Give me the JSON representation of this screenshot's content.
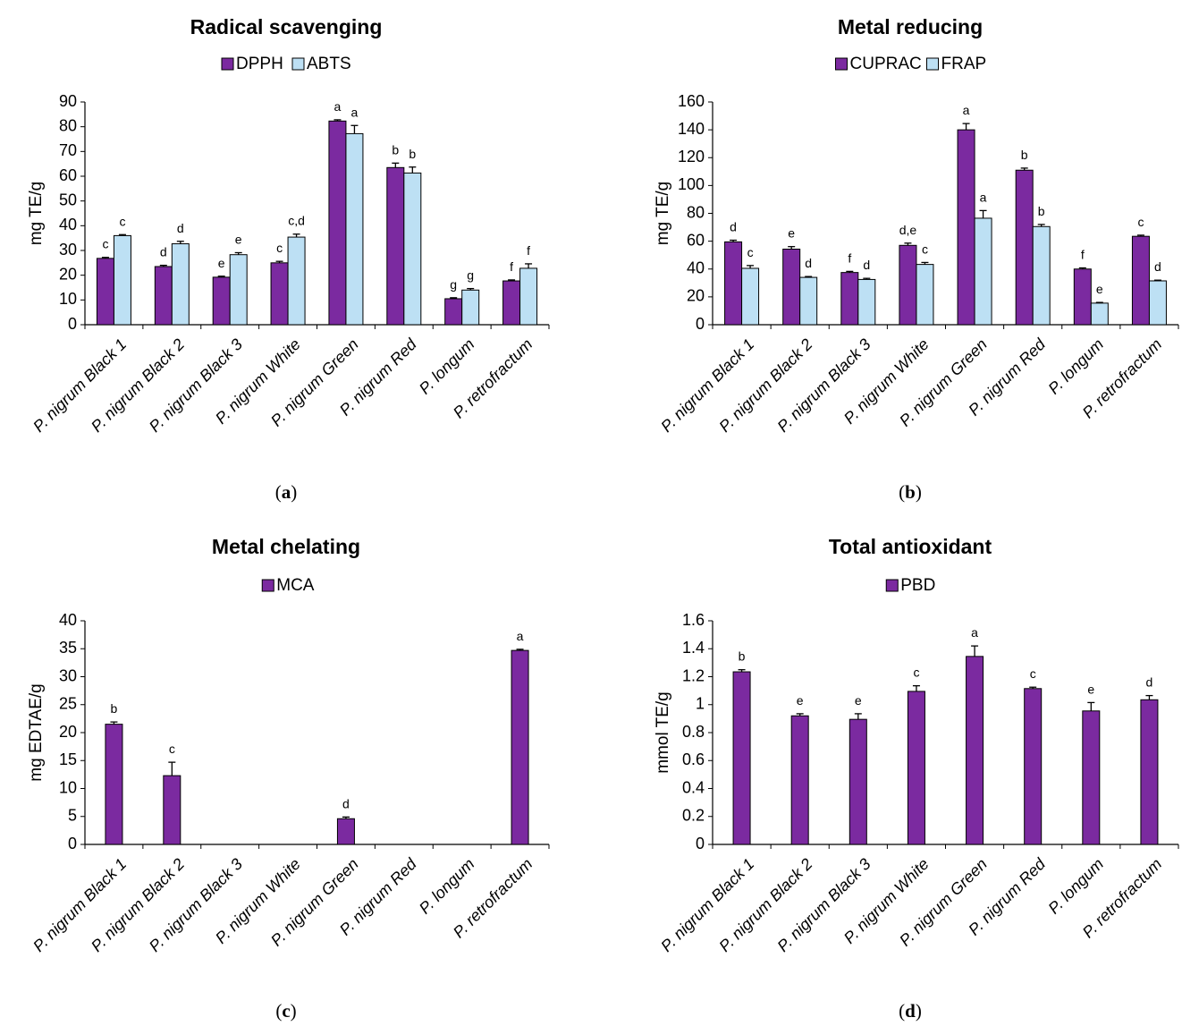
{
  "colors": {
    "dark": "#7b2aa0",
    "light": "#bde0f4",
    "edge": "#000000"
  },
  "panels": [
    {
      "caption_prefix": "(",
      "caption_letter": "a",
      "caption_suffix": ")",
      "chart_data": {
        "type": "bar",
        "title": "Radical scavenging",
        "ylabel": "mg TE/g",
        "ylim": [
          0,
          90
        ],
        "yticks": [
          0,
          10,
          20,
          30,
          40,
          50,
          60,
          70,
          80,
          90
        ],
        "ytick_labels": [
          "0",
          "10",
          "20",
          "30",
          "40",
          "50",
          "60",
          "70",
          "80",
          "90"
        ],
        "categories": [
          "P. nigrum Black 1",
          "P. nigrum Black 2",
          "P. nigrum Black 3",
          "P. nigrum White",
          "P. nigrum Green",
          "P. nigrum Red",
          "P. longum",
          "P. retrofractum"
        ],
        "legend_placement": "top-center",
        "series": [
          {
            "name": "DPPH",
            "color": "#7b2aa0",
            "values": [
              26.8,
              23.5,
              19.2,
              25.0,
              82.3,
              63.5,
              10.5,
              17.7
            ],
            "errors": [
              0.4,
              0.5,
              0.4,
              0.6,
              0.5,
              1.8,
              0.4,
              0.4
            ],
            "labels": [
              "c",
              "d",
              "e",
              "c",
              "a",
              "b",
              "g",
              "f"
            ]
          },
          {
            "name": "ABTS",
            "color": "#bde0f4",
            "values": [
              36.0,
              32.7,
              28.3,
              35.4,
              77.2,
              61.3,
              14.0,
              22.8
            ],
            "errors": [
              0.4,
              1.0,
              0.8,
              1.2,
              3.3,
              2.4,
              0.6,
              1.8
            ],
            "labels": [
              "c",
              "d",
              "e",
              "c,d",
              "a",
              "b",
              "g",
              "f"
            ]
          }
        ]
      }
    },
    {
      "caption_prefix": "(",
      "caption_letter": "b",
      "caption_suffix": ")",
      "chart_data": {
        "type": "bar",
        "title": "Metal reducing",
        "ylabel": "mg TE/g",
        "ylim": [
          0,
          160
        ],
        "yticks": [
          0,
          20,
          40,
          60,
          80,
          100,
          120,
          140,
          160
        ],
        "ytick_labels": [
          "0",
          "20",
          "40",
          "60",
          "80",
          "100",
          "120",
          "140",
          "160"
        ],
        "categories": [
          "P. nigrum Black 1",
          "P. nigrum Black 2",
          "P. nigrum Black 3",
          "P. nigrum White",
          "P. nigrum Green",
          "P. nigrum Red",
          "P. longum",
          "P. retrofractum"
        ],
        "legend_placement": "top-center",
        "series": [
          {
            "name": "CUPRAC",
            "color": "#7b2aa0",
            "values": [
              59.5,
              54.3,
              37.5,
              57.0,
              140.0,
              111.0,
              40.0,
              63.5
            ],
            "errors": [
              1.2,
              1.8,
              0.8,
              1.6,
              4.5,
              1.5,
              0.8,
              0.8
            ],
            "labels": [
              "d",
              "e",
              "f",
              "d,e",
              "a",
              "b",
              "f",
              "c"
            ]
          },
          {
            "name": "FRAP",
            "color": "#bde0f4",
            "values": [
              40.5,
              34.0,
              32.5,
              43.3,
              76.5,
              70.5,
              15.5,
              31.5
            ],
            "errors": [
              2.0,
              0.6,
              0.8,
              1.4,
              5.5,
              1.5,
              0.5,
              0.5
            ],
            "labels": [
              "c",
              "d",
              "d",
              "c",
              "a",
              "b",
              "e",
              "d"
            ]
          }
        ]
      }
    },
    {
      "caption_prefix": "(",
      "caption_letter": "c",
      "caption_suffix": ")",
      "chart_data": {
        "type": "bar",
        "title": "Metal chelating",
        "ylabel": "mg EDTAE/g",
        "ylim": [
          0,
          40
        ],
        "yticks": [
          0,
          5,
          10,
          15,
          20,
          25,
          30,
          35,
          40
        ],
        "ytick_labels": [
          "0",
          "5",
          "10",
          "15",
          "20",
          "25",
          "30",
          "35",
          "40"
        ],
        "categories": [
          "P. nigrum Black 1",
          "P. nigrum Black 2",
          "P. nigrum Black 3",
          "P. nigrum White",
          "P. nigrum Green",
          "P. nigrum Red",
          "P. longum",
          "P. retrofractum"
        ],
        "legend_placement": "top-center",
        "series": [
          {
            "name": "MCA",
            "color": "#7b2aa0",
            "values": [
              21.5,
              12.3,
              0,
              0,
              4.6,
              0,
              0,
              34.7
            ],
            "errors": [
              0.4,
              2.4,
              0,
              0,
              0.3,
              0,
              0,
              0.2
            ],
            "labels": [
              "b",
              "c",
              "",
              "",
              "d",
              "",
              "",
              "a"
            ]
          }
        ]
      }
    },
    {
      "caption_prefix": "(",
      "caption_letter": "d",
      "caption_suffix": ")",
      "chart_data": {
        "type": "bar",
        "title": "Total antioxidant",
        "ylabel": "mmol TE/g",
        "ylim": [
          0,
          1.6
        ],
        "yticks": [
          0,
          0.2,
          0.4,
          0.6,
          0.8,
          1,
          1.2,
          1.4,
          1.6
        ],
        "ytick_labels": [
          "0",
          "0.2",
          "0.4",
          "0.6",
          "0.8",
          "1",
          "1.2",
          "1.4",
          "1.6"
        ],
        "categories": [
          "P. nigrum Black 1",
          "P. nigrum Black 2",
          "P. nigrum Black 3",
          "P. nigrum White",
          "P. nigrum Green",
          "P. nigrum Red",
          "P. longum",
          "P. retrofractum"
        ],
        "legend_placement": "top-center",
        "series": [
          {
            "name": "PBD",
            "color": "#7b2aa0",
            "values": [
              1.235,
              0.92,
              0.895,
              1.095,
              1.345,
              1.115,
              0.955,
              1.035
            ],
            "errors": [
              0.015,
              0.015,
              0.04,
              0.04,
              0.075,
              0.01,
              0.06,
              0.03
            ],
            "labels": [
              "b",
              "e",
              "e",
              "c",
              "a",
              "c",
              "e",
              "d"
            ]
          }
        ]
      }
    }
  ]
}
